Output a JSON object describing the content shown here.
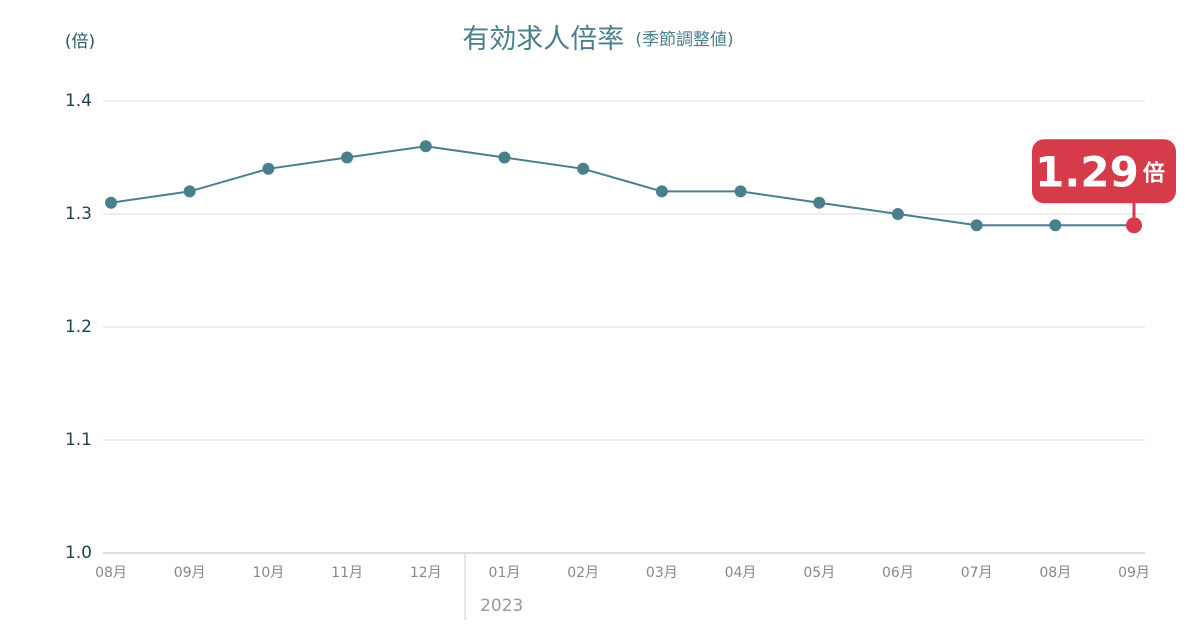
{
  "chart_data": {
    "type": "line",
    "title": "有効求人倍率",
    "subtitle": "(季節調整値)",
    "y_unit": "(倍)",
    "categories": [
      "08月",
      "09月",
      "10月",
      "11月",
      "12月",
      "01月",
      "02月",
      "03月",
      "04月",
      "05月",
      "06月",
      "07月",
      "08月",
      "09月"
    ],
    "year_label": "2023",
    "series": [
      {
        "name": "有効求人倍率",
        "color": "#4a7f8c",
        "values": [
          1.31,
          1.32,
          1.34,
          1.35,
          1.36,
          1.35,
          1.34,
          1.32,
          1.32,
          1.31,
          1.3,
          1.29,
          1.29,
          1.29
        ]
      }
    ],
    "highlight_color": "#d63b4a",
    "value_unit": "倍",
    "ylim": [
      1.0,
      1.4
    ],
    "yticks": [
      {
        "value": 1,
        "label": "1.0"
      },
      1.1,
      1.2,
      1.3,
      1.4
    ],
    "grid": true
  }
}
